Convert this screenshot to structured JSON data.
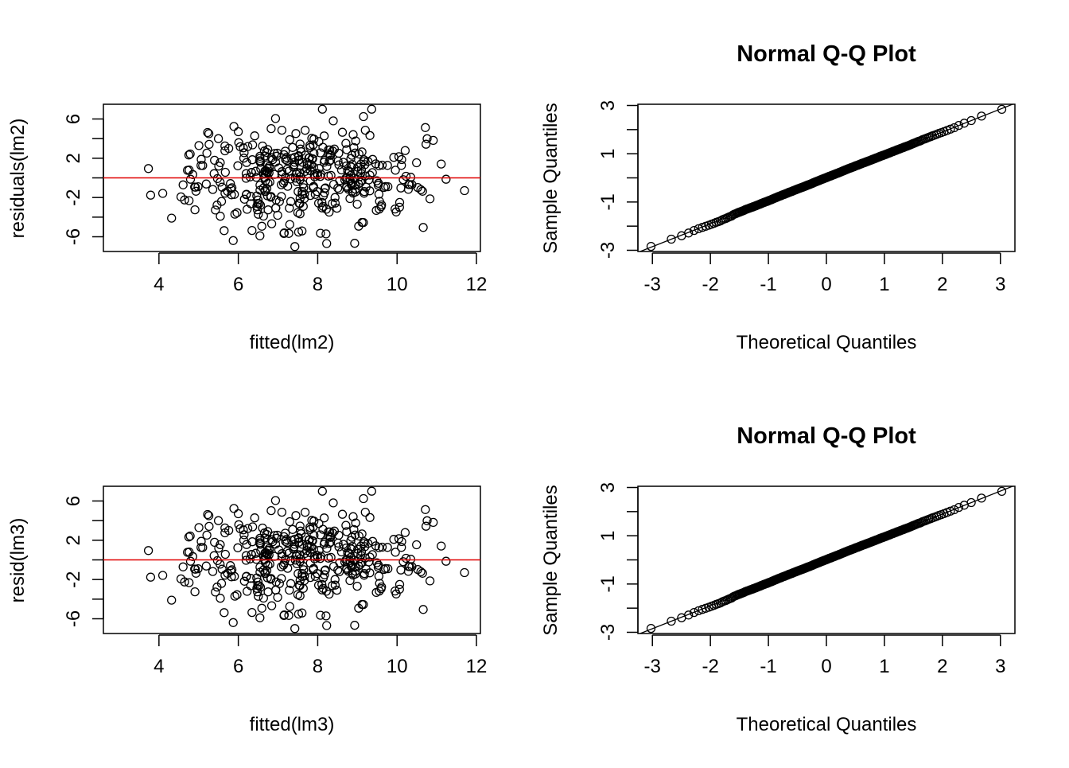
{
  "chart_data": [
    {
      "type": "scatter",
      "panel": "top-left",
      "title": "",
      "xlabel": "fitted(lm2)",
      "ylabel": "residuals(lm2)",
      "xlim": [
        2.6,
        12.1
      ],
      "ylim": [
        -7.5,
        7.5
      ],
      "xticks": [
        4,
        6,
        8,
        10,
        12
      ],
      "xtick_labels": [
        "4",
        "6",
        "8",
        "10",
        "12"
      ],
      "yticks": [
        -6,
        -4,
        -2,
        0,
        2,
        4,
        6
      ],
      "ytick_labels": [
        "-6",
        "",
        "-2",
        "",
        "2",
        "",
        "6"
      ],
      "hline": {
        "y": 0,
        "color": "#e00000"
      },
      "n_points": 400,
      "point_summary": {
        "x_mean": 7.5,
        "x_sd": 1.45,
        "y_sd": 2.5,
        "x_min": 2.9,
        "x_max": 11.7,
        "y_min": -7.0,
        "y_max": 7.0
      },
      "grid": false
    },
    {
      "type": "scatter",
      "panel": "top-right",
      "title": "Normal Q-Q Plot",
      "xlabel": "Theoretical Quantiles",
      "ylabel": "Sample Quantiles",
      "xlim": [
        -3.25,
        3.25
      ],
      "ylim": [
        -3.05,
        3.05
      ],
      "xticks": [
        -3,
        -2,
        -1,
        0,
        1,
        2,
        3
      ],
      "xtick_labels": [
        "-3",
        "-2",
        "-1",
        "0",
        "1",
        "2",
        "3"
      ],
      "yticks": [
        -3,
        -2,
        -1,
        0,
        1,
        2,
        3
      ],
      "ytick_labels": [
        "-3",
        "",
        "-1",
        "",
        "1",
        "",
        "3"
      ],
      "qqline": {
        "slope": 0.95,
        "intercept": 0.0
      },
      "n_points": 400,
      "grid": false
    },
    {
      "type": "scatter",
      "panel": "bottom-left",
      "title": "",
      "xlabel": "fitted(lm3)",
      "ylabel": "resid(lm3)",
      "xlim": [
        2.6,
        12.1
      ],
      "ylim": [
        -7.5,
        7.5
      ],
      "xticks": [
        4,
        6,
        8,
        10,
        12
      ],
      "xtick_labels": [
        "4",
        "6",
        "8",
        "10",
        "12"
      ],
      "yticks": [
        -6,
        -4,
        -2,
        0,
        2,
        4,
        6
      ],
      "ytick_labels": [
        "-6",
        "",
        "-2",
        "",
        "2",
        "",
        "6"
      ],
      "hline": {
        "y": 0,
        "color": "#e00000"
      },
      "n_points": 400,
      "point_summary": {
        "x_mean": 7.5,
        "x_sd": 1.45,
        "y_sd": 2.5,
        "x_min": 2.9,
        "x_max": 11.7,
        "y_min": -7.0,
        "y_max": 7.0
      },
      "grid": false
    },
    {
      "type": "scatter",
      "panel": "bottom-right",
      "title": "Normal Q-Q Plot",
      "xlabel": "Theoretical Quantiles",
      "ylabel": "Sample Quantiles",
      "xlim": [
        -3.25,
        3.25
      ],
      "ylim": [
        -3.05,
        3.05
      ],
      "xticks": [
        -3,
        -2,
        -1,
        0,
        1,
        2,
        3
      ],
      "xtick_labels": [
        "-3",
        "-2",
        "-1",
        "0",
        "1",
        "2",
        "3"
      ],
      "yticks": [
        -3,
        -2,
        -1,
        0,
        1,
        2,
        3
      ],
      "ytick_labels": [
        "-3",
        "",
        "-1",
        "",
        "1",
        "",
        "3"
      ],
      "qqline": {
        "slope": 0.95,
        "intercept": 0.0
      },
      "n_points": 400,
      "grid": false
    }
  ]
}
